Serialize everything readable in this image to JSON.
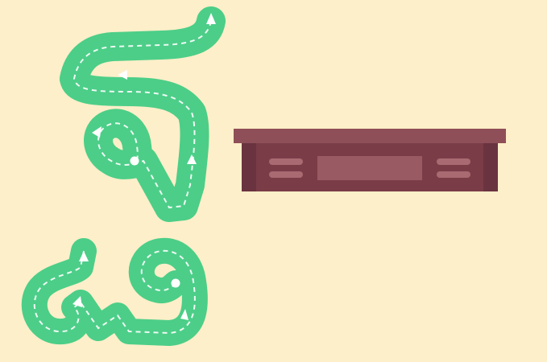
{
  "scene": {
    "description_free": true,
    "colors": {
      "background": "#fdefc9",
      "letter_stroke": "#4cce88",
      "guide_line": "#ffffff",
      "desk_top": "#8f4f58",
      "desk_body": "#7a3d48",
      "desk_side_dark": "#6a3340",
      "desk_panel": "#9a5a63"
    },
    "icons": [
      "thai-letter-cho-chan-tracing-icon",
      "thai-letter-cho-chan-tracing-icon-small",
      "desk-icon"
    ]
  }
}
